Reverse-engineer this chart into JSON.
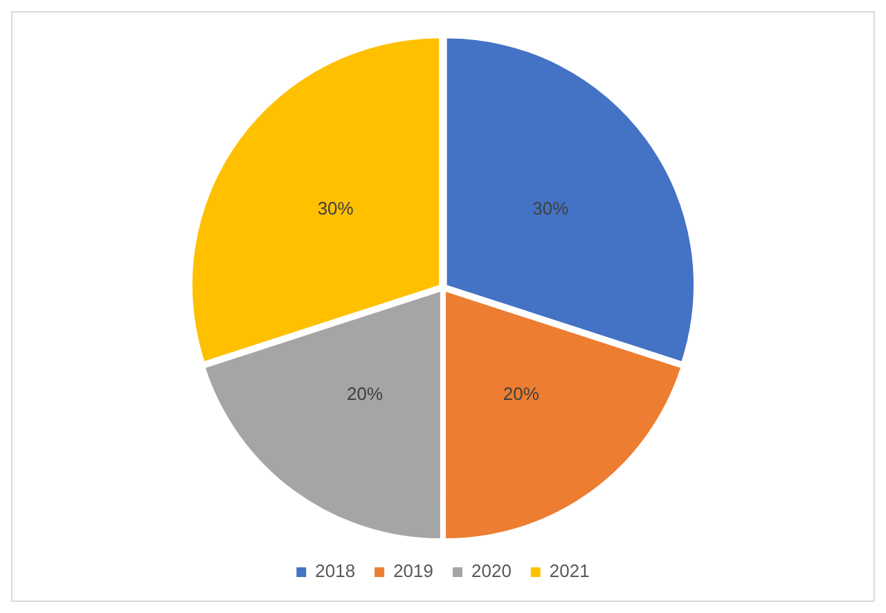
{
  "chart_data": {
    "type": "pie",
    "categories": [
      "2018",
      "2019",
      "2020",
      "2021"
    ],
    "values": [
      30,
      20,
      20,
      30
    ],
    "colors": [
      "#4472c4",
      "#ed7d31",
      "#a5a5a5",
      "#ffc000"
    ],
    "value_labels": [
      "30%",
      "20%",
      "20%",
      "30%"
    ],
    "legend": "bottom"
  }
}
